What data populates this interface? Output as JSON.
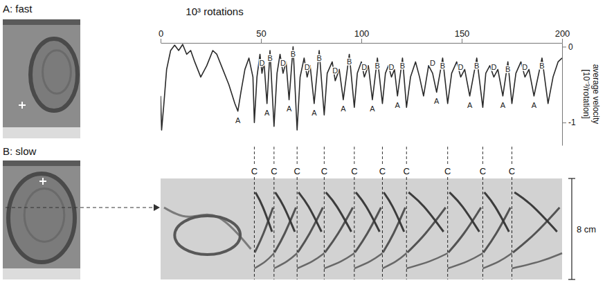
{
  "chart_data": {
    "type": "line",
    "x_label": "10³ rotations",
    "y_label": "average velocity [10⁻³/rotation]",
    "color": "#2a2a2a",
    "xlim": [
      0,
      200
    ],
    "xticks": [
      0,
      50,
      100,
      150,
      200
    ],
    "ylim": [
      -1.3,
      0.05
    ],
    "yticks": [
      -1,
      0
    ],
    "x": [
      0,
      0.5,
      1.5,
      3,
      5,
      7,
      9,
      11,
      13,
      15,
      17,
      20,
      23,
      26,
      28,
      31,
      34,
      37,
      38.5,
      40,
      42,
      44,
      46,
      46.7,
      48,
      49.5,
      50.5,
      51.5,
      53,
      54.5,
      56.5,
      58,
      59.5,
      61,
      62.5,
      64,
      66,
      68,
      69.5,
      71.5,
      73,
      74.5,
      76.5,
      79,
      81.5,
      83,
      85.5,
      87,
      89,
      91,
      94,
      96.5,
      98,
      100,
      101.5,
      103.5,
      105.5,
      108,
      110.5,
      112,
      113.5,
      115,
      116.5,
      118,
      120.5,
      122.5,
      124.5,
      127,
      129,
      131,
      133.5,
      135.5,
      137.5,
      140.5,
      143,
      145,
      147.5,
      149.5,
      151.5,
      154,
      157.5,
      160.5,
      162,
      164,
      166,
      168,
      170.5,
      173,
      175,
      177,
      179.5,
      181.5,
      183.5,
      186,
      190,
      193,
      195.5,
      198,
      200
    ],
    "values": [
      -0.65,
      -1.1,
      -0.8,
      -0.3,
      -0.05,
      0.02,
      -0.05,
      0.03,
      -0.1,
      -0.05,
      -0.2,
      -0.4,
      -0.25,
      -0.05,
      -0.1,
      -0.3,
      -0.5,
      -0.75,
      -0.85,
      -0.6,
      -0.3,
      -0.15,
      -0.4,
      -1.0,
      -0.4,
      -0.1,
      -0.35,
      -0.2,
      -0.75,
      -0.05,
      -1.05,
      -0.35,
      -0.1,
      -0.35,
      -0.2,
      -0.7,
      0,
      -1.1,
      -0.4,
      -0.15,
      -0.4,
      -0.25,
      -0.75,
      -0.05,
      -0.9,
      -0.35,
      -0.2,
      -0.45,
      -0.3,
      -0.7,
      -0.1,
      -0.8,
      -0.35,
      -0.2,
      -0.4,
      -0.25,
      -0.7,
      -0.15,
      -0.75,
      -0.35,
      -0.25,
      -0.4,
      -0.3,
      -0.65,
      -0.15,
      -0.8,
      -0.4,
      -0.2,
      -0.4,
      -0.65,
      -0.25,
      -0.35,
      -0.6,
      -0.15,
      -0.75,
      -0.35,
      -0.2,
      -0.4,
      -0.3,
      -0.65,
      -0.15,
      -0.8,
      -0.35,
      -0.25,
      -0.4,
      -0.3,
      -0.65,
      -0.2,
      -0.75,
      -0.35,
      -0.2,
      -0.4,
      -0.3,
      -0.65,
      -0.15,
      -0.75,
      -0.4,
      -0.2,
      -0.15
    ],
    "annotations": [
      {
        "text": "A",
        "x": 38.5,
        "y": -0.97
      },
      {
        "text": "A",
        "x": 53,
        "y": -0.87
      },
      {
        "text": "A",
        "x": 64,
        "y": -0.82
      },
      {
        "text": "A",
        "x": 76.5,
        "y": -0.87
      },
      {
        "text": "A",
        "x": 91,
        "y": -0.82
      },
      {
        "text": "A",
        "x": 105.5,
        "y": -0.82
      },
      {
        "text": "A",
        "x": 118,
        "y": -0.77
      },
      {
        "text": "A",
        "x": 137.5,
        "y": -0.72
      },
      {
        "text": "A",
        "x": 154,
        "y": -0.77
      },
      {
        "text": "A",
        "x": 170.5,
        "y": -0.77
      },
      {
        "text": "A",
        "x": 186,
        "y": -0.77
      },
      {
        "text": "D",
        "x": 50.5,
        "y": -0.22
      },
      {
        "text": "D",
        "x": 61,
        "y": -0.22
      },
      {
        "text": "D",
        "x": 73,
        "y": -0.27
      },
      {
        "text": "D",
        "x": 87,
        "y": -0.32
      },
      {
        "text": "D",
        "x": 101.5,
        "y": -0.27
      },
      {
        "text": "D",
        "x": 115,
        "y": -0.27
      },
      {
        "text": "D",
        "x": 135.5,
        "y": -0.22
      },
      {
        "text": "D",
        "x": 149.5,
        "y": -0.27
      },
      {
        "text": "D",
        "x": 166,
        "y": -0.27
      },
      {
        "text": "D",
        "x": 181.5,
        "y": -0.27
      },
      {
        "text": "B",
        "x": 54.5,
        "y": -0.15
      },
      {
        "text": "B",
        "x": 66,
        "y": -0.1
      },
      {
        "text": "B",
        "x": 79,
        "y": -0.15
      },
      {
        "text": "B",
        "x": 94,
        "y": -0.2
      },
      {
        "text": "B",
        "x": 108,
        "y": -0.25
      },
      {
        "text": "B",
        "x": 120.5,
        "y": -0.25
      },
      {
        "text": "B",
        "x": 140.5,
        "y": -0.25
      },
      {
        "text": "B",
        "x": 157.5,
        "y": -0.25
      },
      {
        "text": "B",
        "x": 173,
        "y": -0.3
      },
      {
        "text": "B",
        "x": 190,
        "y": -0.25
      }
    ],
    "c_lines": [
      {
        "text": "C",
        "x": 46.7
      },
      {
        "text": "C",
        "x": 56.5
      },
      {
        "text": "C",
        "x": 68
      },
      {
        "text": "C",
        "x": 81.5
      },
      {
        "text": "C",
        "x": 96.5
      },
      {
        "text": "C",
        "x": 110.5
      },
      {
        "text": "C",
        "x": 122.5
      },
      {
        "text": "C",
        "x": 143
      },
      {
        "text": "C",
        "x": 160.5
      },
      {
        "text": "C",
        "x": 175
      }
    ]
  },
  "panels": [
    {
      "label": "A: fast"
    },
    {
      "label": "B: slow"
    }
  ],
  "space_time": {
    "scale_label": "8 cm"
  }
}
